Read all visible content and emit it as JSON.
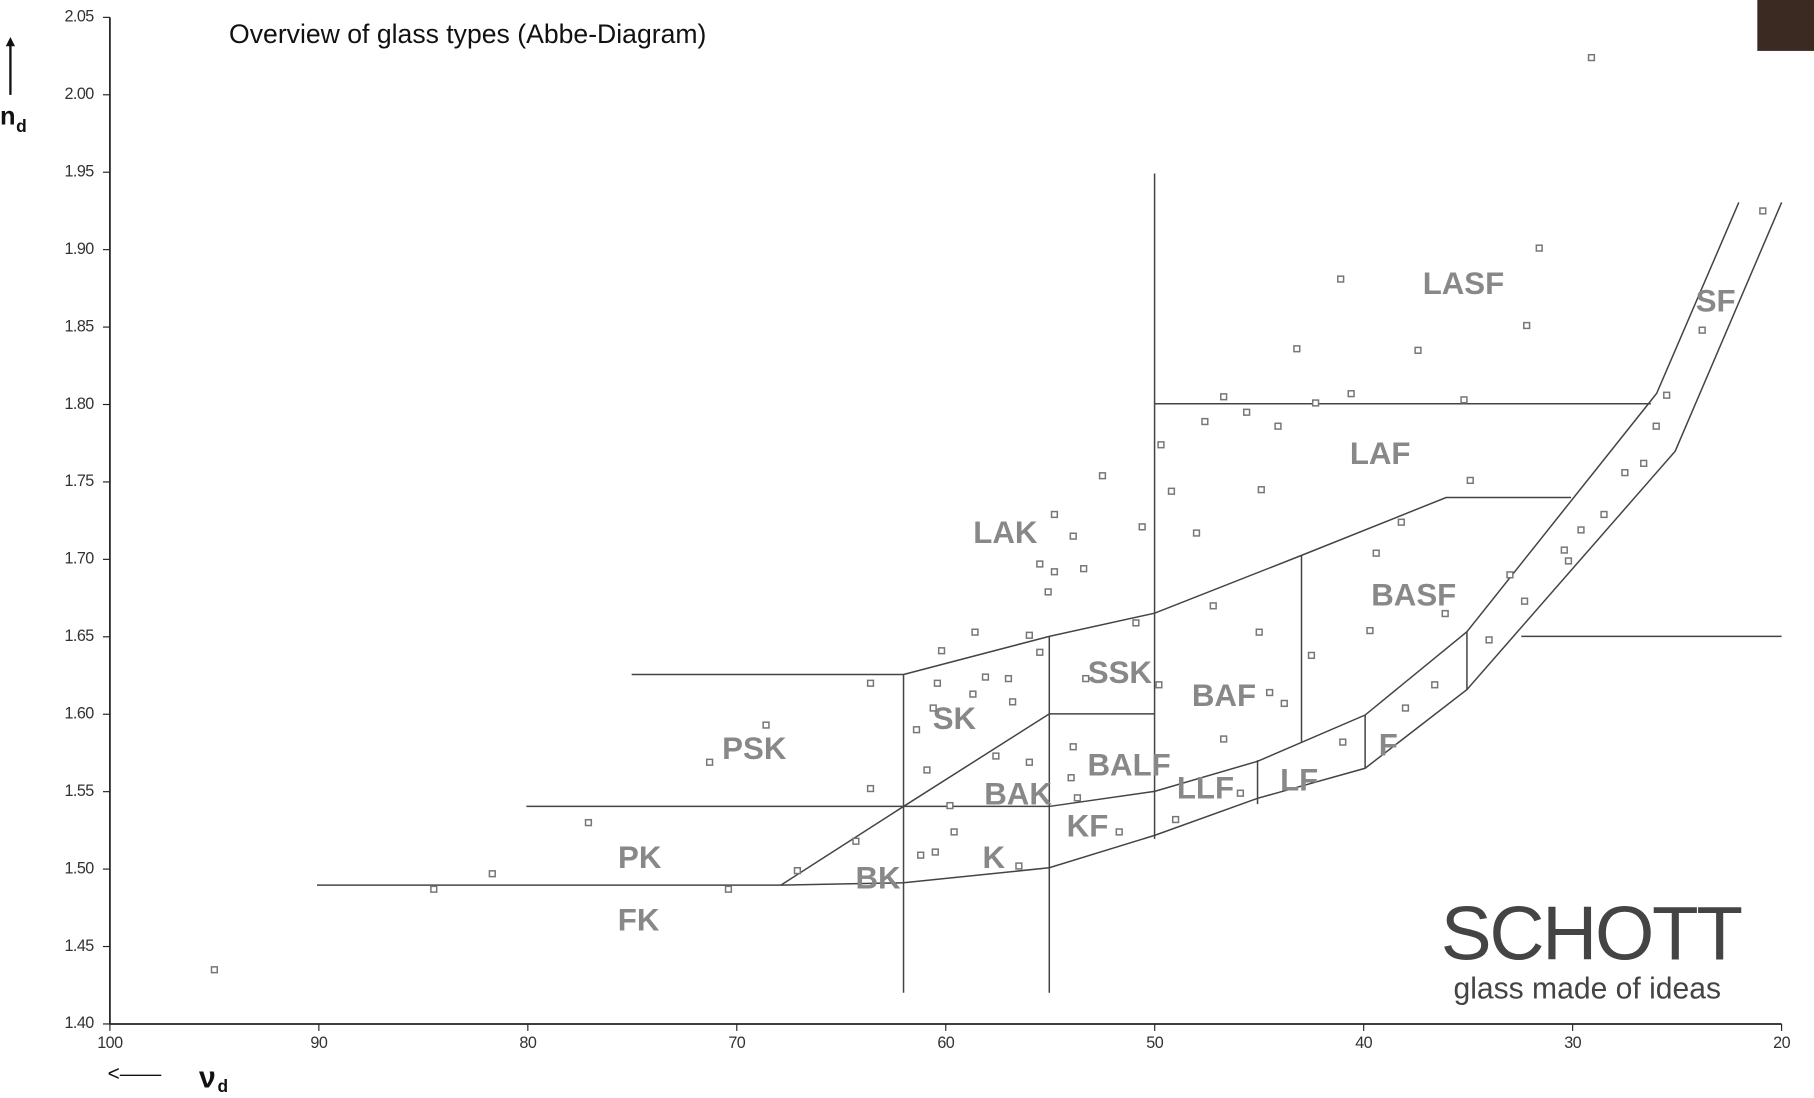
{
  "chart_data": {
    "type": "scatter",
    "title": "Overview of glass types (Abbe-Diagram)",
    "xlabel": {
      "text": "ν",
      "subscript": "d"
    },
    "ylabel": {
      "text": "n",
      "subscript": "d"
    },
    "xlim": [
      100,
      20
    ],
    "ylim": [
      1.4,
      2.05
    ],
    "xticks": [
      100,
      90,
      80,
      70,
      60,
      50,
      40,
      30,
      20
    ],
    "yticks": [
      {
        "value": 1.4,
        "label": "1.40"
      },
      1.45,
      {
        "value": 1.5,
        "label": "1.50"
      },
      1.55,
      {
        "value": 1.6,
        "label": "1.60"
      },
      1.65,
      {
        "value": 1.7,
        "label": "1.70"
      },
      1.75,
      {
        "value": 1.8,
        "label": "1.80"
      },
      1.85,
      {
        "value": 1.9,
        "label": "1.90"
      },
      1.95,
      {
        "value": 2.0,
        "label": "2.00"
      },
      2.05
    ],
    "color": "#777777",
    "x": [
      95.0,
      84.5,
      81.7,
      77.1,
      71.3,
      70.4,
      68.6,
      67.1,
      64.3,
      63.6,
      63.6,
      61.2,
      60.5,
      61.4,
      60.6,
      60.4,
      60.9,
      60.2,
      59.8,
      59.6,
      58.7,
      58.6,
      58.1,
      57.6,
      57.0,
      56.8,
      56.5,
      56.0,
      56.0,
      55.5,
      55.5,
      55.1,
      54.8,
      54.8,
      53.9,
      54.0,
      53.9,
      53.7,
      53.4,
      53.3,
      52.5,
      51.7,
      50.9,
      50.6,
      49.8,
      49.7,
      49.2,
      49.0,
      48.0,
      47.6,
      47.2,
      46.7,
      46.7,
      45.9,
      45.6,
      45.0,
      44.9,
      44.5,
      44.1,
      43.8,
      43.2,
      42.5,
      42.3,
      41.1,
      41.0,
      40.6,
      39.7,
      39.4,
      38.2,
      38.0,
      37.4,
      36.6,
      36.1,
      35.2,
      34.9,
      34.0,
      33.0,
      32.3,
      32.2,
      31.6,
      30.4,
      30.2,
      29.6,
      29.1,
      28.5,
      27.5,
      26.6,
      26.0,
      25.5,
      23.8,
      20.9
    ],
    "values": [
      1.435,
      1.487,
      1.497,
      1.53,
      1.569,
      1.487,
      1.593,
      1.499,
      1.518,
      1.552,
      1.62,
      1.509,
      1.511,
      1.59,
      1.604,
      1.62,
      1.564,
      1.641,
      1.541,
      1.524,
      1.613,
      1.653,
      1.624,
      1.573,
      1.623,
      1.608,
      1.502,
      1.569,
      1.651,
      1.64,
      1.697,
      1.679,
      1.729,
      1.692,
      1.715,
      1.559,
      1.579,
      1.546,
      1.694,
      1.623,
      1.754,
      1.524,
      1.659,
      1.721,
      1.619,
      1.774,
      1.744,
      1.532,
      1.717,
      1.789,
      1.67,
      1.584,
      1.805,
      1.549,
      1.795,
      1.653,
      1.745,
      1.614,
      1.786,
      1.607,
      1.836,
      1.638,
      1.801,
      1.881,
      1.582,
      1.807,
      1.654,
      1.704,
      1.724,
      1.604,
      1.835,
      1.619,
      1.665,
      1.803,
      1.751,
      1.648,
      1.69,
      1.673,
      1.851,
      1.901,
      1.706,
      1.699,
      1.719,
      2.024,
      1.729,
      1.756,
      1.762,
      1.786,
      1.806,
      1.848,
      1.925
    ],
    "regions": [
      "LASF",
      "SF",
      "LAF",
      "LAK",
      "BASF",
      "SSK",
      "BAF",
      "SK",
      "PSK",
      "BALF",
      "F",
      "LF",
      "LLF",
      "BAK",
      "KF",
      "PK",
      "K",
      "BK",
      "FK"
    ],
    "logo": {
      "name": "SCHOTT",
      "tagline": "glass made of ideas"
    }
  }
}
